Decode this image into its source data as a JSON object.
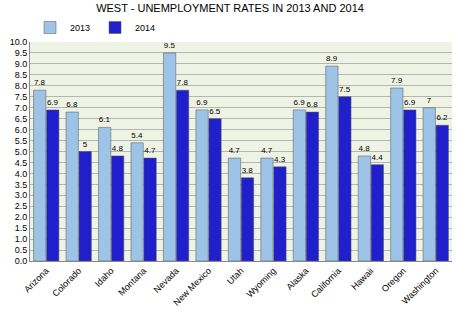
{
  "chart_data": {
    "type": "bar",
    "title": "WEST - UNEMPLOYMENT RATES IN 2013 AND 2014",
    "categories": [
      "Arizona",
      "Colorado",
      "Idaho",
      "Montana",
      "Nevada",
      "New Mexico",
      "Utah",
      "Wyoming",
      "Alaska",
      "California",
      "Hawaii",
      "Oregon",
      "Washington"
    ],
    "series": [
      {
        "name": "2013",
        "color": "#9dc3e6",
        "values": [
          7.8,
          6.8,
          6.1,
          5.4,
          9.5,
          6.9,
          4.7,
          4.7,
          6.9,
          8.9,
          4.8,
          7.9,
          7
        ]
      },
      {
        "name": "2014",
        "color": "#1f1fcc",
        "values": [
          6.9,
          5,
          4.8,
          4.7,
          7.8,
          6.5,
          3.8,
          4.3,
          6.8,
          7.5,
          4.4,
          6.9,
          6.2
        ]
      }
    ],
    "ylim": [
      0,
      10
    ],
    "yticks": [
      {
        "value": 0,
        "label": "0.0"
      },
      0.5,
      {
        "value": 1,
        "label": "1.0"
      },
      1.5,
      {
        "value": 2,
        "label": "2.0"
      },
      2.5,
      {
        "value": 3,
        "label": "3.0"
      },
      3.5,
      {
        "value": 4,
        "label": "4.0"
      },
      4.5,
      {
        "value": 5,
        "label": "5.0"
      },
      5.5,
      {
        "value": 6,
        "label": "6.0"
      },
      6.5,
      {
        "value": 7,
        "label": "7.0"
      },
      7.5,
      {
        "value": 8,
        "label": "8.0"
      },
      8.5,
      {
        "value": 9,
        "label": "9.0"
      },
      9.5,
      {
        "value": 10,
        "label": "10.0"
      }
    ],
    "grid": true,
    "legend": "top left",
    "data_labels": true
  }
}
